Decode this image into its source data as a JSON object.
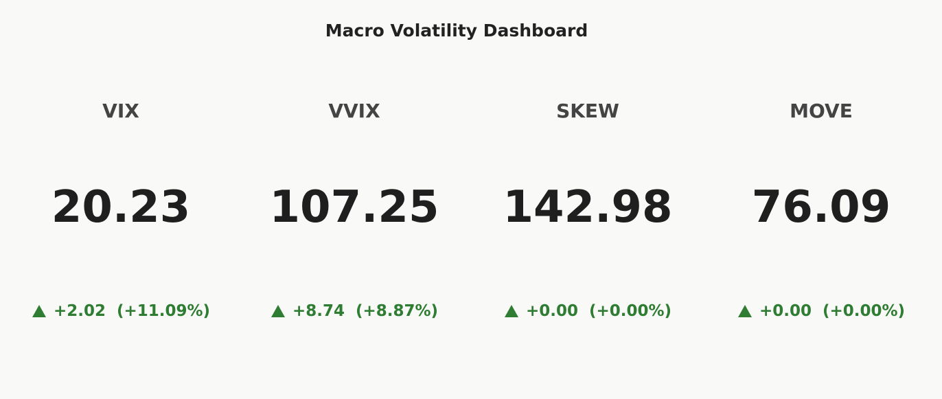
{
  "title": "Macro Volatility Dashboard",
  "indicators": [
    {
      "label": "VIX",
      "value": "20.23",
      "delta": "+2.02",
      "delta_pct": "(+11.09%)"
    },
    {
      "label": "VVIX",
      "value": "107.25",
      "delta": "+8.74",
      "delta_pct": "(+8.87%)"
    },
    {
      "label": "SKEW",
      "value": "142.98",
      "delta": "+0.00",
      "delta_pct": "(+0.00%)"
    },
    {
      "label": "MOVE",
      "value": "76.09",
      "delta": "+0.00",
      "delta_pct": "(+0.00%)"
    }
  ]
}
